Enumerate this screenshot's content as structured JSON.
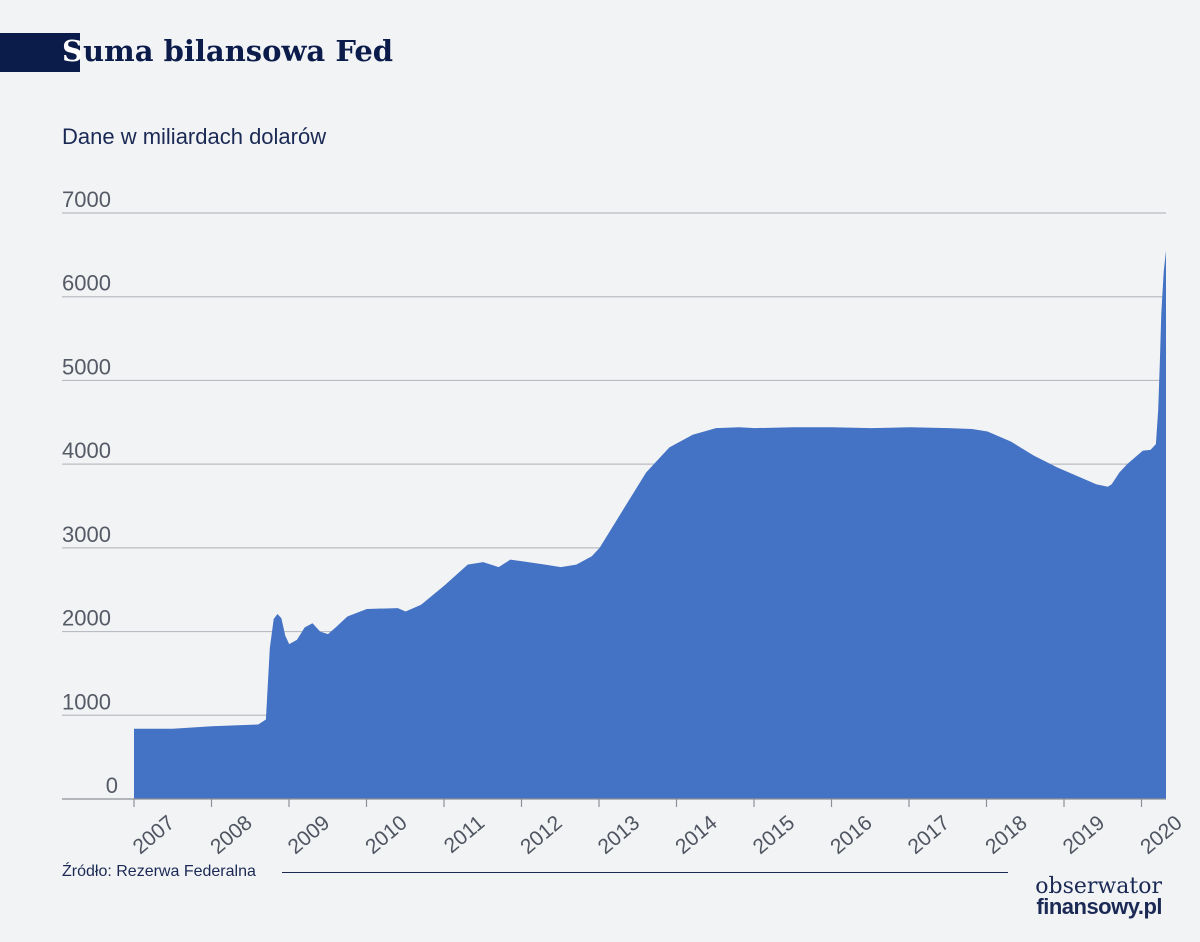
{
  "header": {
    "title_first": "S",
    "title_rest": "uma bilansowa Fed",
    "subtitle": "Dane w miliardach dolarów"
  },
  "footer": {
    "source": "Źródło: Rezerwa Federalna",
    "logo_top": "obserwator",
    "logo_bottom": "finansowy.pl"
  },
  "colors": {
    "area": "#4472c4",
    "grid": "#b9bcc2",
    "title": "#0b1b4a"
  },
  "chart_data": {
    "type": "area",
    "title": "Suma bilansowa Fed",
    "subtitle": "Dane w miliardach dolarów",
    "ylim": [
      0,
      7000
    ],
    "yticks": [
      "0",
      "1000",
      "2000",
      "3000",
      "4000",
      "5000",
      "6000",
      "7000"
    ],
    "xticks": [
      "2007",
      "2008",
      "2009",
      "2010",
      "2011",
      "2012",
      "2013",
      "2014",
      "2015",
      "2016",
      "2017",
      "2018",
      "2019",
      "2020"
    ],
    "xlim": [
      2007.0,
      2020.3
    ],
    "grid": true,
    "series": [
      {
        "x": [
          2007.0,
          2007.5,
          2008.0,
          2008.6,
          2008.7,
          2008.75,
          2008.8,
          2008.85,
          2008.9,
          2008.95,
          2009.0,
          2009.1,
          2009.2,
          2009.3,
          2009.4,
          2009.5,
          2009.6,
          2009.75,
          2010.0,
          2010.4,
          2010.5,
          2010.7,
          2011.0,
          2011.3,
          2011.5,
          2011.7,
          2011.85,
          2012.0,
          2012.3,
          2012.5,
          2012.7,
          2012.9,
          2013.0,
          2013.3,
          2013.6,
          2013.9,
          2014.2,
          2014.5,
          2014.8,
          2015.0,
          2015.5,
          2016.0,
          2016.5,
          2017.0,
          2017.5,
          2017.8,
          2018.0,
          2018.3,
          2018.6,
          2018.9,
          2019.2,
          2019.4,
          2019.55,
          2019.6,
          2019.7,
          2019.8,
          2019.9,
          2020.0,
          2020.1,
          2020.17,
          2020.2,
          2020.22,
          2020.24,
          2020.27,
          2020.3
        ],
        "values": [
          840,
          840,
          870,
          890,
          950,
          1800,
          2150,
          2210,
          2160,
          1950,
          1850,
          1900,
          2050,
          2100,
          2000,
          1970,
          2050,
          2180,
          2270,
          2280,
          2240,
          2320,
          2550,
          2800,
          2830,
          2770,
          2860,
          2840,
          2800,
          2770,
          2800,
          2900,
          3000,
          3450,
          3900,
          4200,
          4350,
          4430,
          4440,
          4430,
          4440,
          4440,
          4430,
          4440,
          4430,
          4420,
          4390,
          4270,
          4100,
          3960,
          3840,
          3760,
          3730,
          3760,
          3900,
          4000,
          4080,
          4160,
          4170,
          4240,
          4650,
          5200,
          5800,
          6300,
          6550
        ]
      }
    ]
  }
}
